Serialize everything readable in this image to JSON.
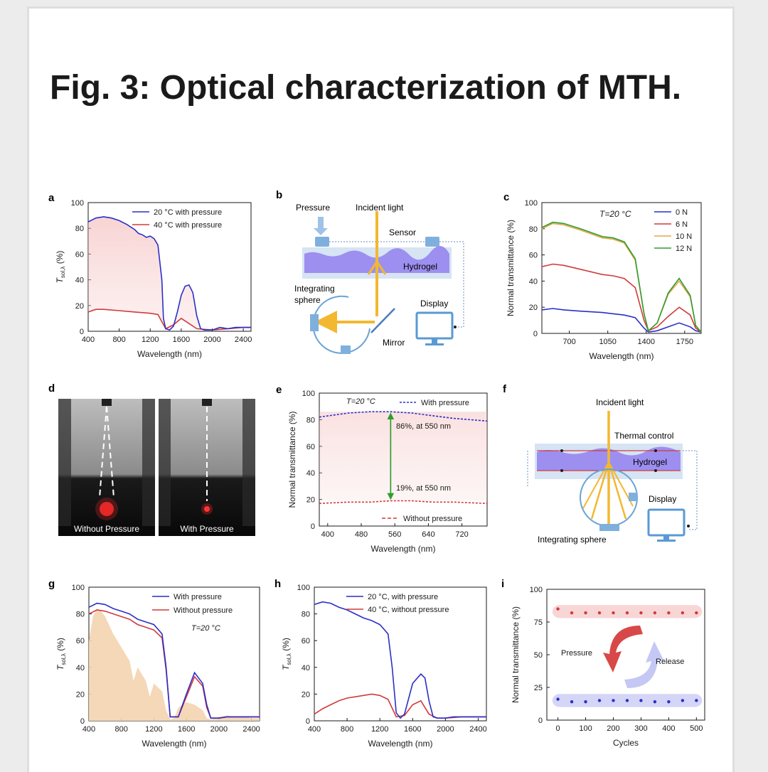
{
  "title": "Fig. 3: Optical characterization of MTH.",
  "panels": {
    "a": {
      "letter": "a",
      "ylabel": "T",
      "ylabel_sub": "sol,λ",
      "ylabel_unit": " (%)",
      "xlabel": "Wavelength (nm)",
      "xticks": [
        "400",
        "800",
        "1200",
        "1600",
        "2000",
        "2400"
      ],
      "yticks": [
        "0",
        "20",
        "40",
        "60",
        "80",
        "100"
      ],
      "legend": [
        "20 °C with pressure",
        "40 °C with pressure"
      ]
    },
    "b": {
      "letter": "b",
      "labels": {
        "pressure": "Pressure",
        "incident": "Incident light",
        "sensor": "Sensor",
        "hydrogel": "Hydrogel",
        "integrating1": "Integrating",
        "integrating2": "sphere",
        "display": "Display",
        "mirror": "Mirror"
      }
    },
    "c": {
      "letter": "c",
      "ylabel": "Normal transmittance (%)",
      "xlabel": "Wavelength (nm)",
      "annotation": "T=20 °C",
      "xticks": [
        "700",
        "1050",
        "1400",
        "1750"
      ],
      "yticks": [
        "0",
        "20",
        "40",
        "60",
        "80",
        "100"
      ],
      "legend": [
        "0 N",
        "6 N",
        "10 N",
        "12 N"
      ]
    },
    "d": {
      "letter": "d",
      "left_label": "Without Pressure",
      "right_label": "With Pressure"
    },
    "e": {
      "letter": "e",
      "ylabel": "Normal transmittance (%)",
      "xlabel": "Wavelength (nm)",
      "annotation": "T=20 °C",
      "legend_top": "With pressure",
      "legend_bottom": "Without pressure",
      "note_top": "86%, at 550 nm",
      "note_bottom": "19%, at 550 nm",
      "xticks": [
        "400",
        "480",
        "560",
        "640",
        "720"
      ],
      "yticks": [
        "0",
        "20",
        "40",
        "60",
        "80",
        "100"
      ]
    },
    "f": {
      "letter": "f",
      "labels": {
        "incident": "Incident light",
        "thermal": "Thermal control",
        "hydrogel": "Hydrogel",
        "display": "Display",
        "integrating": "Integrating sphere"
      }
    },
    "g": {
      "letter": "g",
      "ylabel": "T",
      "ylabel_sub": "sol,λ",
      "ylabel_unit": " (%)",
      "xlabel": "Wavelength (nm)",
      "annotation": "T=20 °C",
      "legend": [
        "With pressure",
        "Without pressure"
      ],
      "xticks": [
        "400",
        "800",
        "1200",
        "1600",
        "2000",
        "2400"
      ],
      "yticks": [
        "0",
        "20",
        "40",
        "60",
        "80",
        "100"
      ]
    },
    "h": {
      "letter": "h",
      "ylabel": "T",
      "ylabel_sub": "sol,λ",
      "ylabel_unit": " (%)",
      "xlabel": "Wavelength (nm)",
      "legend": [
        "20 °C, with pressure",
        "40 °C, without pressure"
      ],
      "xticks": [
        "400",
        "800",
        "1200",
        "1600",
        "2000",
        "2400"
      ],
      "yticks": [
        "0",
        "20",
        "40",
        "60",
        "80",
        "100"
      ]
    },
    "i": {
      "letter": "i",
      "ylabel": "Normal transmittance (%)",
      "xlabel": "Cycles",
      "pressure": "Pressure",
      "release": "Release",
      "xticks": [
        "0",
        "100",
        "200",
        "300",
        "400",
        "500"
      ],
      "yticks": [
        "0",
        "25",
        "50",
        "75",
        "100"
      ]
    }
  },
  "colors": {
    "blue": "#2b2fc7",
    "red": "#d23a3a",
    "orange": "#e8a64a",
    "green": "#2e9e2e",
    "arrow": "#f2b830",
    "hydrogel": "#9d8ff0",
    "sky": "#6aa3d6"
  },
  "chart_data": [
    {
      "panel": "a",
      "type": "area",
      "xlim": [
        400,
        2500
      ],
      "ylim": [
        0,
        100
      ],
      "series": [
        {
          "name": "20 °C with pressure",
          "x": [
            400,
            500,
            600,
            700,
            800,
            900,
            1000,
            1050,
            1100,
            1150,
            1200,
            1250,
            1300,
            1350,
            1370,
            1400,
            1450,
            1500,
            1550,
            1600,
            1650,
            1700,
            1750,
            1800,
            1850,
            1900,
            2000,
            2050,
            2100,
            2200,
            2300,
            2400,
            2500
          ],
          "y": [
            85,
            88,
            89,
            88,
            86,
            83,
            79,
            76,
            75,
            73,
            74,
            72,
            67,
            40,
            10,
            2,
            1,
            4,
            15,
            28,
            35,
            36,
            30,
            12,
            2,
            1,
            1,
            2,
            3,
            2,
            3,
            3,
            3
          ]
        },
        {
          "name": "40 °C with pressure",
          "x": [
            400,
            500,
            600,
            800,
            1000,
            1200,
            1300,
            1400,
            1500,
            1600,
            1800,
            2000,
            2200,
            2400,
            2500
          ],
          "y": [
            15,
            17,
            17,
            16,
            15,
            14,
            13,
            2,
            5,
            10,
            2,
            1,
            2,
            3,
            3
          ]
        }
      ]
    },
    {
      "panel": "c",
      "type": "line",
      "xlim": [
        450,
        1900
      ],
      "ylim": [
        0,
        100
      ],
      "series": [
        {
          "name": "0 N",
          "x": [
            450,
            550,
            650,
            800,
            1000,
            1100,
            1200,
            1300,
            1380,
            1420,
            1500,
            1600,
            1700,
            1800,
            1850,
            1900
          ],
          "y": [
            18,
            19,
            18,
            17,
            16,
            15,
            14,
            12,
            4,
            1,
            2,
            5,
            8,
            5,
            2,
            1
          ]
        },
        {
          "name": "6 N",
          "x": [
            450,
            550,
            650,
            800,
            1000,
            1100,
            1200,
            1300,
            1380,
            1420,
            1500,
            1600,
            1700,
            1800,
            1850,
            1900
          ],
          "y": [
            51,
            53,
            52,
            49,
            45,
            44,
            42,
            35,
            10,
            2,
            5,
            13,
            20,
            14,
            4,
            1
          ]
        },
        {
          "name": "10 N",
          "x": [
            450,
            550,
            650,
            800,
            1000,
            1100,
            1200,
            1300,
            1380,
            1420,
            1500,
            1600,
            1700,
            1800,
            1850,
            1900
          ],
          "y": [
            80,
            84,
            83,
            79,
            73,
            72,
            69,
            56,
            15,
            2,
            8,
            30,
            40,
            28,
            6,
            1
          ]
        },
        {
          "name": "12 N",
          "x": [
            450,
            550,
            650,
            800,
            1000,
            1100,
            1200,
            1300,
            1380,
            1420,
            1500,
            1600,
            1700,
            1800,
            1850,
            1900
          ],
          "y": [
            81,
            85,
            84,
            80,
            74,
            73,
            70,
            57,
            15,
            2,
            8,
            31,
            42,
            29,
            6,
            1
          ]
        }
      ]
    },
    {
      "panel": "e",
      "type": "line",
      "xlim": [
        380,
        780
      ],
      "ylim": [
        0,
        100
      ],
      "series": [
        {
          "name": "With pressure",
          "x": [
            380,
            450,
            500,
            550,
            600,
            650,
            700,
            780
          ],
          "y": [
            82,
            85,
            86,
            86,
            85,
            83,
            81,
            79
          ]
        },
        {
          "name": "Without pressure",
          "x": [
            380,
            450,
            500,
            550,
            600,
            650,
            700,
            780
          ],
          "y": [
            17,
            18,
            18,
            19,
            19,
            18,
            18,
            17
          ]
        }
      ]
    },
    {
      "panel": "g",
      "type": "line",
      "xlim": [
        400,
        2500
      ],
      "ylim": [
        0,
        100
      ],
      "series": [
        {
          "name": "With pressure",
          "x": [
            400,
            500,
            600,
            700,
            800,
            900,
            1000,
            1100,
            1200,
            1300,
            1350,
            1400,
            1500,
            1600,
            1700,
            1800,
            1850,
            1900,
            2000,
            2100,
            2200,
            2300,
            2400,
            2500
          ],
          "y": [
            85,
            88,
            87,
            84,
            82,
            80,
            76,
            74,
            72,
            65,
            40,
            3,
            3,
            20,
            36,
            28,
            12,
            2,
            2,
            3,
            3,
            3,
            3,
            3
          ]
        },
        {
          "name": "Without pressure",
          "x": [
            400,
            500,
            600,
            700,
            800,
            900,
            1000,
            1100,
            1200,
            1300,
            1350,
            1400,
            1500,
            1600,
            1700,
            1800,
            1850,
            1900,
            2000,
            2100,
            2200,
            2300,
            2400,
            2500
          ],
          "y": [
            80,
            83,
            82,
            80,
            78,
            76,
            72,
            70,
            68,
            62,
            38,
            3,
            3,
            18,
            33,
            26,
            10,
            2,
            2,
            3,
            3,
            3,
            3,
            3
          ]
        }
      ]
    },
    {
      "panel": "h",
      "type": "line",
      "xlim": [
        400,
        2500
      ],
      "ylim": [
        0,
        100
      ],
      "series": [
        {
          "name": "20 °C, with pressure",
          "x": [
            400,
            500,
            600,
            700,
            800,
            900,
            1000,
            1100,
            1200,
            1300,
            1350,
            1400,
            1450,
            1500,
            1600,
            1700,
            1750,
            1800,
            1850,
            1900,
            2000,
            2100,
            2200,
            2300,
            2400,
            2500
          ],
          "y": [
            87,
            89,
            88,
            85,
            83,
            80,
            77,
            75,
            72,
            65,
            40,
            6,
            2,
            5,
            28,
            35,
            32,
            15,
            3,
            2,
            2,
            3,
            3,
            3,
            3,
            3
          ]
        },
        {
          "name": "40 °C, without pressure",
          "x": [
            400,
            500,
            600,
            700,
            800,
            900,
            1000,
            1100,
            1200,
            1300,
            1400,
            1500,
            1600,
            1700,
            1800,
            1900,
            2000,
            2200,
            2400,
            2500
          ],
          "y": [
            5,
            9,
            12,
            15,
            17,
            18,
            19,
            20,
            19,
            16,
            3,
            4,
            12,
            15,
            5,
            2,
            2,
            3,
            3,
            3
          ]
        }
      ]
    },
    {
      "panel": "i",
      "type": "scatter",
      "xlim": [
        -40,
        530
      ],
      "ylim": [
        0,
        100
      ],
      "series": [
        {
          "name": "",
          "x": [
            0,
            50,
            100,
            150,
            200,
            250,
            300,
            350,
            400,
            450,
            500
          ],
          "y": [
            85,
            82,
            82,
            82,
            82,
            82,
            82,
            82,
            82,
            82,
            82
          ]
        },
        {
          "name": "",
          "x": [
            0,
            50,
            100,
            150,
            200,
            250,
            300,
            350,
            400,
            450,
            500
          ],
          "y": [
            16,
            14,
            14,
            15,
            15,
            15,
            15,
            14,
            14,
            15,
            15
          ]
        }
      ]
    }
  ]
}
